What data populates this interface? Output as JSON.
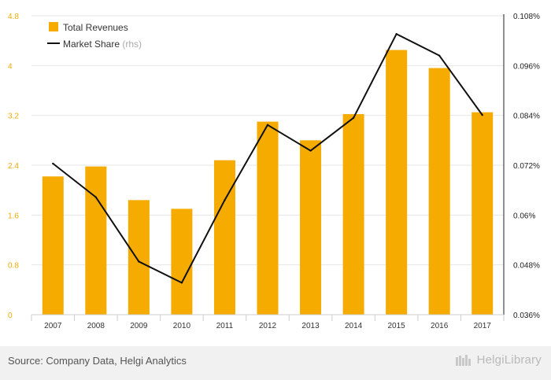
{
  "chart_data": {
    "type": "bar+line",
    "categories": [
      "2007",
      "2008",
      "2009",
      "2010",
      "2011",
      "2012",
      "2013",
      "2014",
      "2015",
      "2016",
      "2017"
    ],
    "series": [
      {
        "name": "Total Revenues",
        "type": "bar",
        "axis": "left",
        "color": "#f5ab00",
        "values": [
          2.22,
          2.38,
          1.84,
          1.7,
          2.48,
          3.1,
          2.8,
          3.22,
          4.25,
          3.96,
          3.25
        ]
      },
      {
        "name": "Market Share",
        "legend_suffix": "(rhs)",
        "type": "line",
        "axis": "right",
        "color": "#111111",
        "values": [
          0.0724,
          0.0643,
          0.0488,
          0.0437,
          0.0636,
          0.0817,
          0.0755,
          0.0834,
          0.1036,
          0.0984,
          0.0841
        ]
      }
    ],
    "y_left": {
      "range": [
        0,
        4.8
      ],
      "ticks": [
        0,
        0.8,
        1.6,
        2.4,
        3.2,
        4,
        4.8
      ],
      "tick_labels": [
        "0",
        "0.8",
        "1.6",
        "2.4",
        "3.2",
        "4",
        "4.8"
      ],
      "color": "#f5ab00"
    },
    "y_right": {
      "range": [
        0.036,
        0.108
      ],
      "ticks": [
        0.036,
        0.048,
        0.06,
        0.072,
        0.084,
        0.096,
        0.108
      ],
      "tick_labels": [
        "0.036%",
        "0.048%",
        "0.06%",
        "0.072%",
        "0.084%",
        "0.096%",
        "0.108%"
      ]
    },
    "grid": true,
    "legend_position": "top-left"
  },
  "legend": {
    "revenues_label": "Total Revenues",
    "share_label": "Market Share",
    "share_suffix": "(rhs)"
  },
  "footer": {
    "source": "Source: Company Data, Helgi Analytics",
    "brand": "HelgiLibrary"
  }
}
